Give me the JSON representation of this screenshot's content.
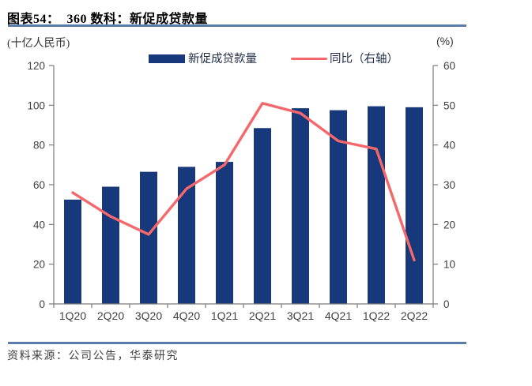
{
  "header": {
    "title": "图表54：  360 数科：新促成贷款量"
  },
  "footer": {
    "source": "资料来源：公司公告，华泰研究"
  },
  "colors": {
    "bar": "#17387A",
    "line": "#F4686C",
    "rule": "#5A7CAB",
    "axis": "#7A7A7A",
    "tick_text": "#404040",
    "legend_text": "#1F2A44"
  },
  "chart_data": {
    "type": "bar",
    "subtype": "bar+line combo, dual axis",
    "title": "360 数科：新促成贷款量",
    "categories": [
      "1Q20",
      "2Q20",
      "3Q20",
      "4Q20",
      "1Q21",
      "2Q21",
      "3Q21",
      "4Q21",
      "1Q22",
      "2Q22"
    ],
    "series": [
      {
        "name": "新促成贷款量",
        "type": "bar",
        "axis": "left",
        "color": "#17387A",
        "values": [
          52.5,
          59,
          66.5,
          69,
          71.5,
          88.5,
          98.5,
          97.5,
          99.5,
          99
        ]
      },
      {
        "name": "同比（右轴）",
        "type": "line",
        "axis": "right",
        "color": "#F4686C",
        "values": [
          28,
          22,
          17.5,
          29,
          35,
          50.5,
          48,
          41,
          39,
          11
        ]
      }
    ],
    "left_axis": {
      "label": "(十亿人民币)",
      "min": 0,
      "max": 120,
      "step": 20
    },
    "right_axis": {
      "label": "(%)",
      "min": 0,
      "max": 60,
      "step": 10
    },
    "grid": false,
    "legend_position": "top"
  }
}
